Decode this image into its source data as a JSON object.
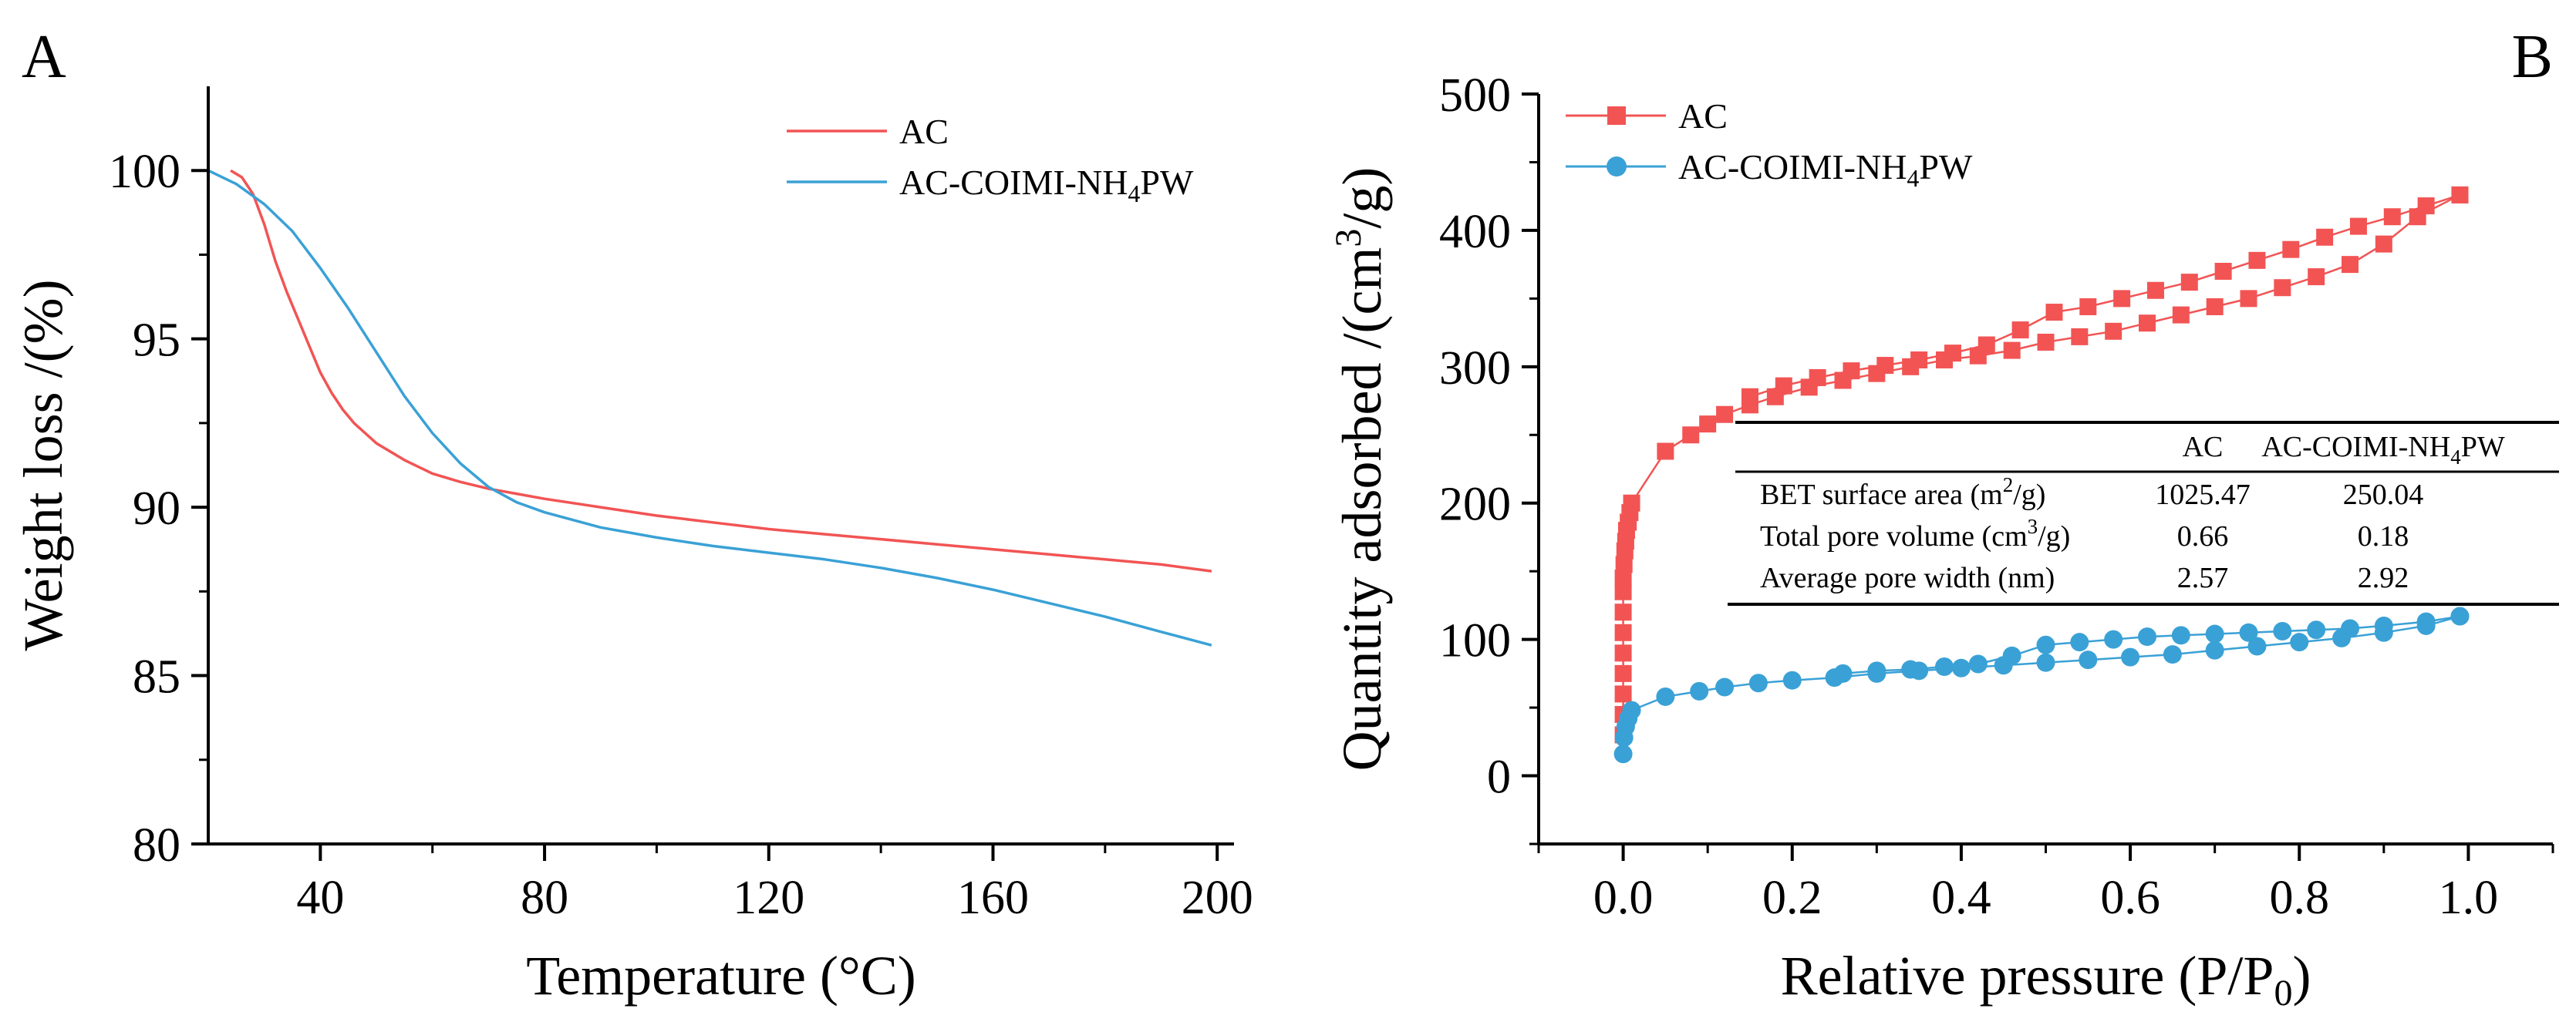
{
  "chart_data": [
    {
      "panel": "A",
      "type": "line",
      "xlabel": "Temperature (°C)",
      "ylabel": "Weight loss /(%)",
      "xlim": [
        20,
        203
      ],
      "ylim": [
        80,
        102.5
      ],
      "xticks": [
        40,
        80,
        120,
        160,
        200
      ],
      "yticks": [
        80,
        85,
        90,
        95,
        100
      ],
      "legend_position": "top-right",
      "series": [
        {
          "name": "AC",
          "legend_label": {
            "base": "AC",
            "sub": ""
          },
          "color": "#f25454",
          "x": [
            24,
            26,
            28,
            30,
            32,
            34,
            36,
            38,
            40,
            42,
            44,
            46,
            48,
            50,
            55,
            60,
            65,
            70,
            75,
            80,
            90,
            100,
            110,
            120,
            130,
            140,
            150,
            160,
            170,
            180,
            190,
            199
          ],
          "y": [
            100.0,
            99.8,
            99.3,
            98.4,
            97.3,
            96.4,
            95.6,
            94.8,
            94.0,
            93.4,
            92.9,
            92.5,
            92.2,
            91.9,
            91.4,
            91.0,
            90.75,
            90.55,
            90.4,
            90.25,
            90.0,
            89.75,
            89.55,
            89.35,
            89.2,
            89.05,
            88.9,
            88.75,
            88.6,
            88.45,
            88.3,
            88.1
          ]
        },
        {
          "name": "AC-COIMI-NH4PW",
          "legend_label": {
            "base": "AC-COIMI-NH",
            "sub": "4",
            "tail": "PW"
          },
          "color": "#3aa1d6",
          "x": [
            20,
            25,
            30,
            35,
            40,
            45,
            50,
            55,
            60,
            65,
            70,
            75,
            80,
            90,
            100,
            110,
            120,
            130,
            140,
            150,
            160,
            170,
            180,
            190,
            199
          ],
          "y": [
            100.0,
            99.6,
            99.0,
            98.2,
            97.1,
            95.9,
            94.6,
            93.3,
            92.2,
            91.3,
            90.6,
            90.15,
            89.85,
            89.4,
            89.1,
            88.85,
            88.65,
            88.45,
            88.2,
            87.9,
            87.55,
            87.15,
            86.75,
            86.3,
            85.9
          ]
        }
      ]
    },
    {
      "panel": "B",
      "type": "line",
      "xlabel_base": "Relative pressure (P/P",
      "xlabel_sub": "0",
      "xlabel_tail": ")",
      "ylabel_base": "Quantity adsorbed /(cm",
      "ylabel_sup": "3",
      "ylabel_tail": "/g)",
      "xlim": [
        -0.1,
        1.1
      ],
      "ylim": [
        -50,
        500
      ],
      "xticks": [
        0.0,
        0.2,
        0.4,
        0.6,
        0.8,
        1.0
      ],
      "xtick_labels": [
        "0.0",
        "0.2",
        "0.4",
        "0.6",
        "0.8",
        "1.0"
      ],
      "yticks": [
        0,
        100,
        200,
        300,
        400,
        500
      ],
      "legend_position": "top-left",
      "series": [
        {
          "name": "AC",
          "legend_label": {
            "base": "AC",
            "sub": ""
          },
          "marker": "square",
          "color": "#f25454",
          "adsorption": {
            "x": [
              0.0,
              0.0,
              0.0,
              0.0,
              0.0,
              0.0,
              0.0,
              0.0,
              0.0,
              0.001,
              0.002,
              0.003,
              0.004,
              0.006,
              0.008,
              0.01,
              0.05,
              0.08,
              0.1,
              0.12,
              0.15,
              0.18,
              0.22,
              0.26,
              0.3,
              0.34,
              0.38,
              0.42,
              0.46,
              0.5,
              0.54,
              0.58,
              0.62,
              0.66,
              0.7,
              0.74,
              0.78,
              0.82,
              0.86,
              0.9,
              0.94,
              0.99
            ],
            "y": [
              30,
              45,
              60,
              75,
              90,
              105,
              120,
              135,
              145,
              155,
              165,
              172,
              180,
              186,
              193,
              200,
              238,
              250,
              258,
              265,
              272,
              278,
              285,
              290,
              295,
              300,
              305,
              308,
              312,
              318,
              322,
              326,
              332,
              338,
              344,
              350,
              358,
              366,
              375,
              390,
              410,
              426
            ]
          },
          "desorption": {
            "x": [
              0.99,
              0.95,
              0.91,
              0.87,
              0.83,
              0.79,
              0.75,
              0.71,
              0.67,
              0.63,
              0.59,
              0.55,
              0.51,
              0.47,
              0.43,
              0.39,
              0.35,
              0.31,
              0.27,
              0.23,
              0.19,
              0.15
            ],
            "y": [
              426,
              418,
              410,
              403,
              395,
              386,
              378,
              370,
              362,
              356,
              350,
              344,
              340,
              327,
              316,
              310,
              305,
              301,
              297,
              292,
              286,
              278
            ]
          }
        },
        {
          "name": "AC-COIMI-NH4PW",
          "legend_label": {
            "base": "AC-COIMI-NH",
            "sub": "4",
            "tail": "PW"
          },
          "marker": "circle",
          "color": "#3aa1d6",
          "adsorption": {
            "x": [
              0.0,
              0.001,
              0.003,
              0.006,
              0.01,
              0.05,
              0.09,
              0.12,
              0.16,
              0.2,
              0.25,
              0.3,
              0.35,
              0.4,
              0.45,
              0.5,
              0.55,
              0.6,
              0.65,
              0.7,
              0.75,
              0.8,
              0.85,
              0.9,
              0.95,
              0.99
            ],
            "y": [
              16,
              28,
              36,
              42,
              48,
              58,
              62,
              65,
              68,
              70,
              72,
              75,
              77,
              79,
              81,
              83,
              85,
              87,
              89,
              92,
              95,
              98,
              101,
              105,
              110,
              117
            ]
          },
          "desorption": {
            "x": [
              0.99,
              0.95,
              0.9,
              0.86,
              0.82,
              0.78,
              0.74,
              0.7,
              0.66,
              0.62,
              0.58,
              0.54,
              0.5,
              0.46,
              0.42,
              0.38,
              0.34,
              0.3,
              0.26
            ],
            "y": [
              117,
              113,
              110,
              108,
              107,
              106,
              105,
              104,
              103,
              102,
              100,
              98,
              96,
              88,
              82,
              80,
              78,
              77,
              75
            ]
          }
        }
      ],
      "table": {
        "headers": [
          "",
          "AC",
          "AC-COIMI-NH4PW"
        ],
        "header_last": {
          "base": "AC-COIMI-NH",
          "sub": "4",
          "tail": "PW"
        },
        "rows": [
          {
            "label_base": "BET surface area (m",
            "label_sup": "2",
            "label_tail": "/g)",
            "ac": "1025.47",
            "comp": "250.04"
          },
          {
            "label_base": "Total pore volume (cm",
            "label_sup": "3",
            "label_tail": "/g)",
            "ac": "0.66",
            "comp": "0.18"
          },
          {
            "label_base": "Average pore width (nm)",
            "label_sup": "",
            "label_tail": "",
            "ac": "2.57",
            "comp": "2.92"
          }
        ]
      }
    }
  ],
  "labels": {
    "panel_a": "A",
    "panel_b": "B"
  }
}
